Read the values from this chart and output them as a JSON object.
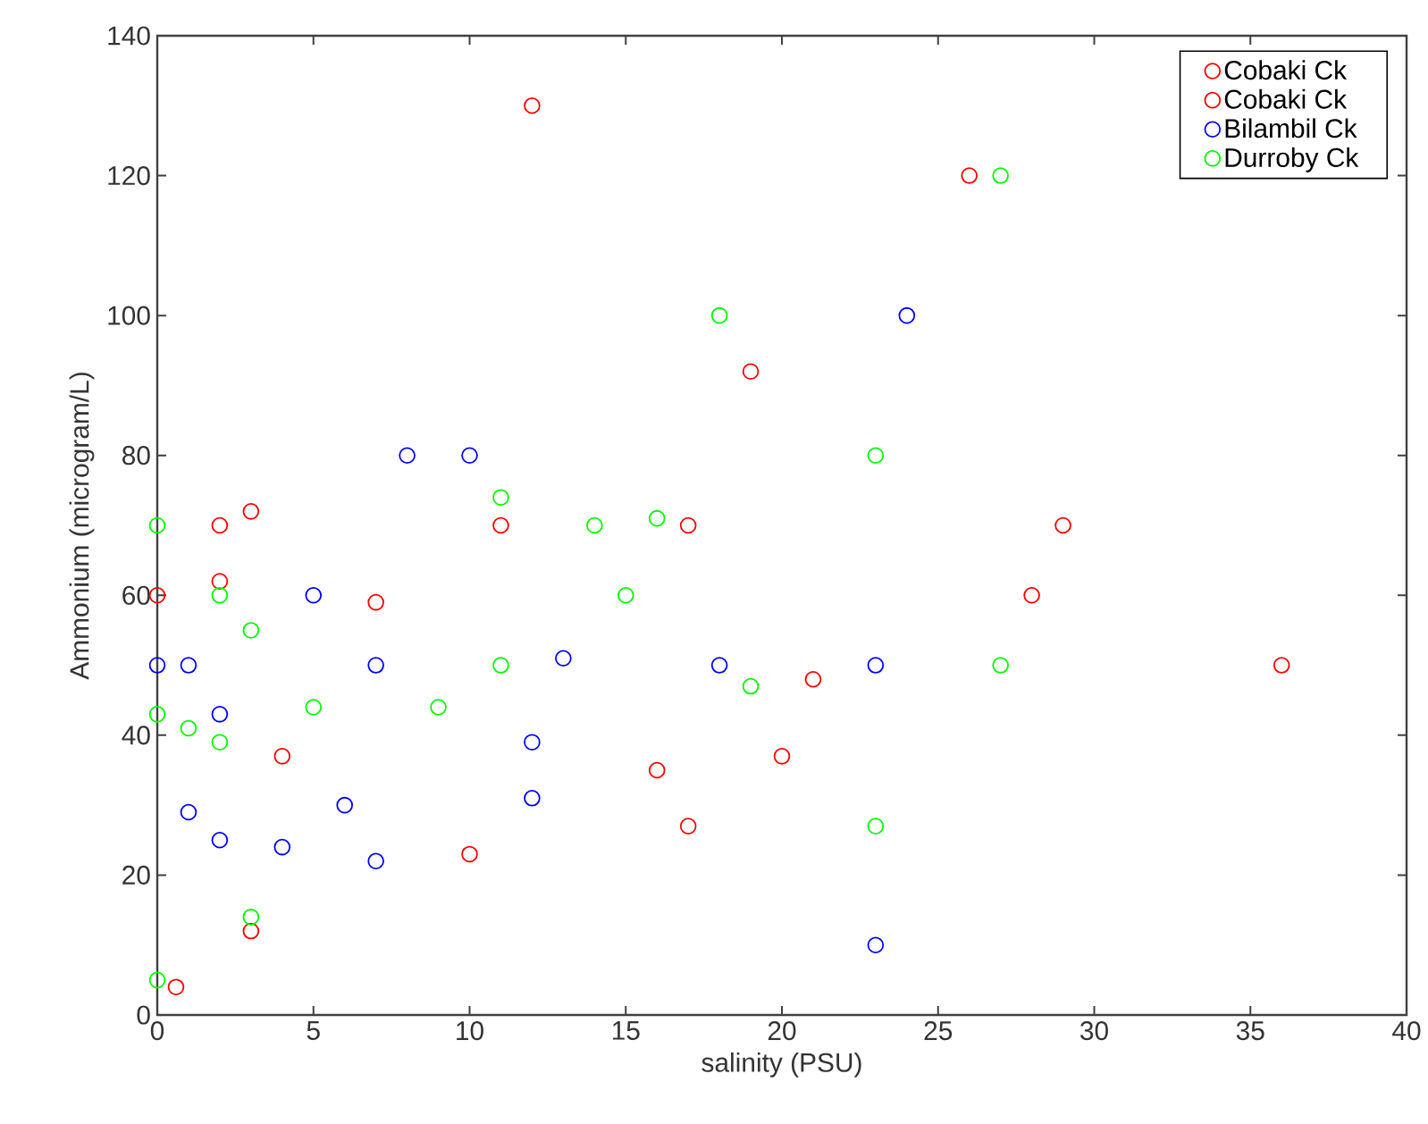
{
  "chart_data": {
    "type": "scatter",
    "xlabel": "salinity (PSU)",
    "ylabel": "Ammonium (microgram/L)",
    "xlim": [
      0,
      40
    ],
    "ylim": [
      0,
      140
    ],
    "xticks": [
      0,
      5,
      10,
      15,
      20,
      25,
      30,
      35,
      40
    ],
    "yticks": [
      0,
      20,
      40,
      60,
      80,
      100,
      120,
      140
    ],
    "grid": false,
    "legend": "top right",
    "marker": "circle",
    "series": [
      {
        "name": "Cobaki Ck",
        "color": "#ff0000",
        "x": [
          0.6
        ],
        "values": [
          4
        ]
      },
      {
        "name": "Cobaki Ck",
        "color": "#ff0000",
        "x": [
          0,
          2,
          2,
          3,
          3,
          4,
          7,
          10,
          11,
          12,
          16,
          17,
          17,
          19,
          20,
          21,
          26,
          28,
          29,
          36
        ],
        "values": [
          60,
          70,
          62,
          72,
          12,
          37,
          59,
          23,
          70,
          130,
          35,
          70,
          27,
          92,
          37,
          48,
          120,
          60,
          70,
          50
        ]
      },
      {
        "name": "Bilambil Ck",
        "color": "#0000ff",
        "x": [
          0,
          1,
          1,
          2,
          2,
          4,
          5,
          6,
          7,
          7,
          8,
          10,
          12,
          12,
          13,
          18,
          23,
          23,
          24
        ],
        "values": [
          50,
          50,
          29,
          43,
          25,
          24,
          60,
          30,
          50,
          22,
          80,
          80,
          39,
          31,
          51,
          50,
          50,
          10,
          100
        ]
      },
      {
        "name": "Durroby Ck",
        "color": "#00ff00",
        "x": [
          0,
          0,
          0,
          1,
          2,
          2,
          3,
          3,
          5,
          9,
          11,
          11,
          14,
          15,
          16,
          18,
          19,
          23,
          23,
          27,
          27
        ],
        "values": [
          70,
          43,
          5,
          41,
          60,
          39,
          55,
          14,
          44,
          44,
          74,
          50,
          70,
          60,
          71,
          100,
          47,
          80,
          27,
          50,
          120
        ]
      }
    ]
  }
}
